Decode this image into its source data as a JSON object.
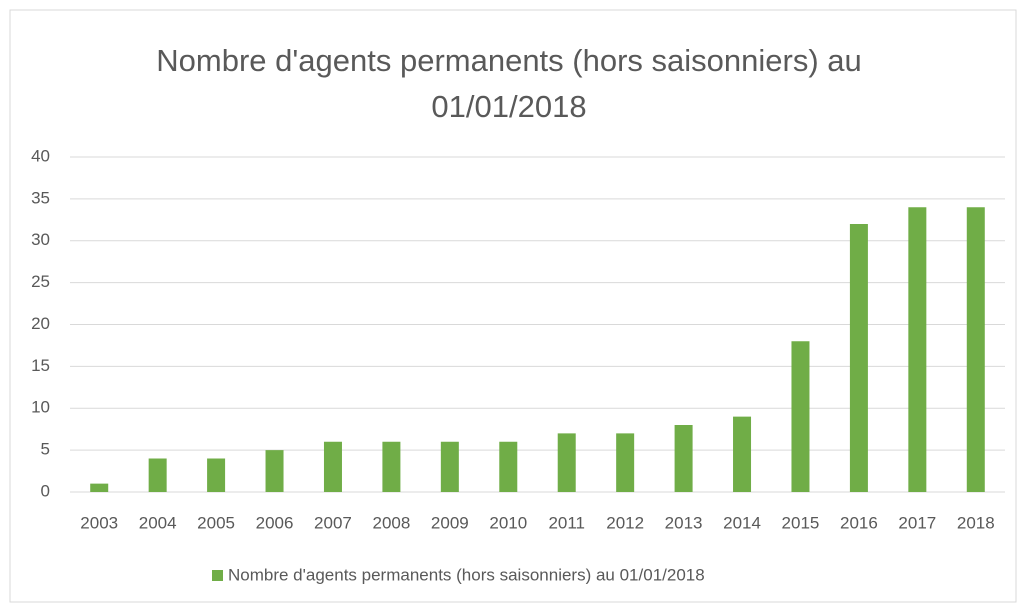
{
  "chart_data": {
    "type": "bar",
    "title": "Nombre d'agents permanents (hors saisonniers) au 01/01/2018",
    "categories": [
      "2003",
      "2004",
      "2005",
      "2006",
      "2007",
      "2008",
      "2009",
      "2010",
      "2011",
      "2012",
      "2013",
      "2014",
      "2015",
      "2016",
      "2017",
      "2018"
    ],
    "series": [
      {
        "name": "Nombre d'agents permanents (hors saisonniers) au 01/01/2018",
        "color": "#70ad47",
        "values": [
          1,
          4,
          4,
          5,
          6,
          6,
          6,
          6,
          7,
          7,
          8,
          9,
          18,
          32,
          34,
          34
        ]
      }
    ],
    "ylim": [
      0,
      40
    ],
    "yticks": [
      0,
      5,
      10,
      15,
      20,
      25,
      30,
      35,
      40
    ],
    "grid": true,
    "legend": "bottom"
  }
}
